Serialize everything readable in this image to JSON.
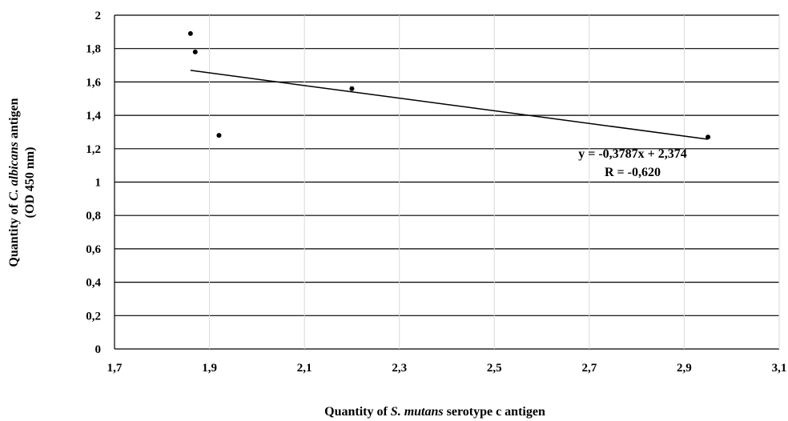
{
  "chart_data": {
    "type": "scatter",
    "xlim": [
      1.7,
      3.1
    ],
    "ylim": [
      0,
      2
    ],
    "xticks": [
      "1,7",
      "1,9",
      "2,1",
      "2,3",
      "2,5",
      "2,7",
      "2,9",
      "3,1"
    ],
    "yticks": [
      "0",
      "0,2",
      "0,4",
      "0,6",
      "0,8",
      "1",
      "1,2",
      "1,4",
      "1,6",
      "1,8",
      "2"
    ],
    "grid": true,
    "legend": "none",
    "xlabel": {
      "pre": "Quantity of ",
      "italic": "S. mutans",
      "post": " serotype c antigen"
    },
    "ylabel": {
      "line1_pre": "Quantity of ",
      "line1_italic": "C. albicans",
      "line1_post": " antigen",
      "line2": "(OD 450 nm)"
    },
    "points": [
      {
        "x": 1.86,
        "y": 1.89
      },
      {
        "x": 1.87,
        "y": 1.78
      },
      {
        "x": 1.92,
        "y": 1.28
      },
      {
        "x": 2.2,
        "y": 1.56
      },
      {
        "x": 2.95,
        "y": 1.27
      }
    ],
    "trendline": {
      "slope": -0.3787,
      "intercept": 2.374,
      "x_start": 1.86,
      "x_end": 2.95
    },
    "annotations": {
      "equation": "y = -0,3787x + 2,374",
      "r": "R = -0,620"
    }
  }
}
